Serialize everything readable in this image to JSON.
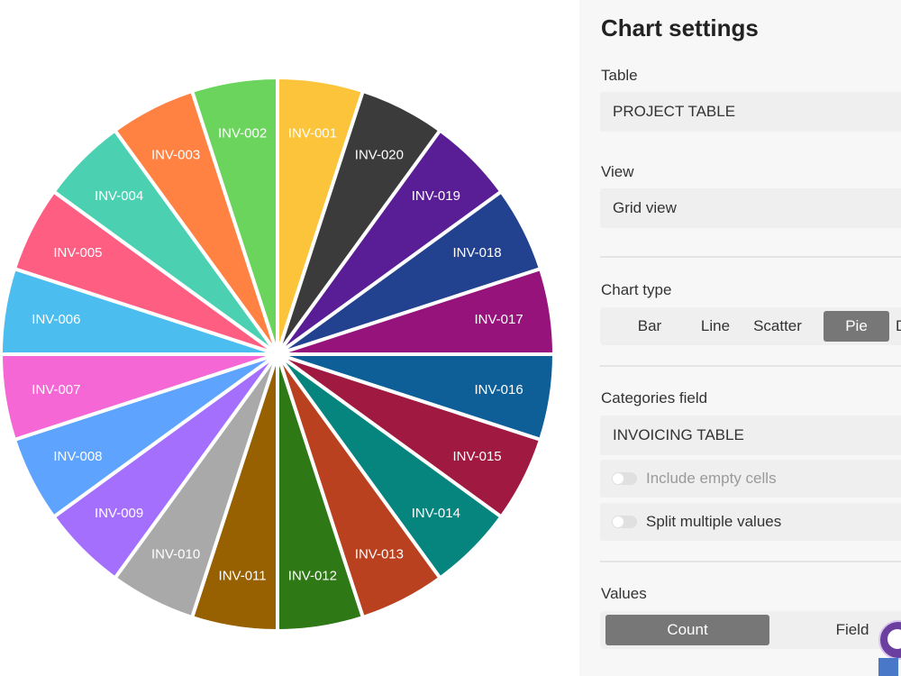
{
  "chart_data": {
    "type": "pie",
    "categories": [
      "INV-001",
      "INV-020",
      "INV-019",
      "INV-018",
      "INV-017",
      "INV-016",
      "INV-015",
      "INV-014",
      "INV-013",
      "INV-012",
      "INV-011",
      "INV-010",
      "INV-009",
      "INV-008",
      "INV-007",
      "INV-006",
      "INV-005",
      "INV-004",
      "INV-003",
      "INV-002"
    ],
    "values": [
      1,
      1,
      1,
      1,
      1,
      1,
      1,
      1,
      1,
      1,
      1,
      1,
      1,
      1,
      1,
      1,
      1,
      1,
      1,
      1
    ],
    "colors": [
      "#fcc43a",
      "#3b3b3b",
      "#591e96",
      "#22418f",
      "#95137a",
      "#0e5f98",
      "#9f1940",
      "#05857e",
      "#b9411f",
      "#2e7815",
      "#976000",
      "#a9a9a9",
      "#a56ffd",
      "#5ea3fd",
      "#f567d4",
      "#4bbdee",
      "#ff5e83",
      "#4bd1b1",
      "#ff8243",
      "#6bd45d"
    ],
    "title": "",
    "xlabel": "",
    "ylabel": ""
  },
  "settings": {
    "title": "Chart settings",
    "table_label": "Table",
    "table_value": "PROJECT TABLE",
    "view_label": "View",
    "view_value": "Grid view",
    "chart_type_label": "Chart type",
    "chart_types": [
      "Bar",
      "Line",
      "Scatter",
      "Pie",
      "Do"
    ],
    "chart_type_selected": "Pie",
    "categories_label": "Categories field",
    "categories_value": "INVOICING TABLE",
    "include_empty_label": "Include empty cells",
    "split_values_label": "Split multiple values",
    "values_label": "Values",
    "values_options": [
      "Count",
      "Field"
    ],
    "values_selected": "Count"
  }
}
